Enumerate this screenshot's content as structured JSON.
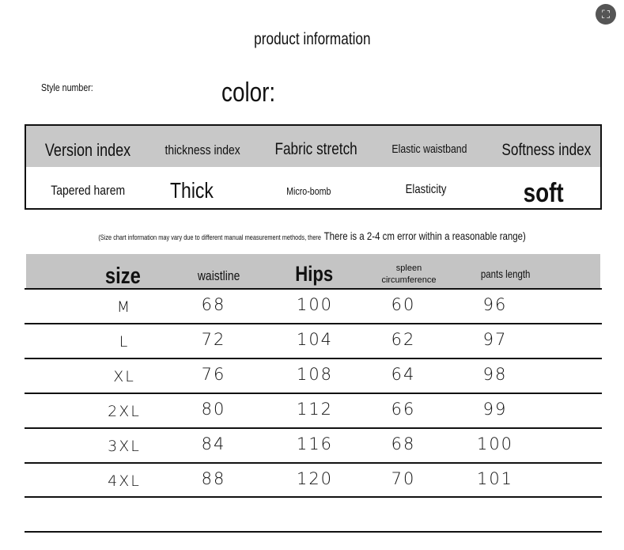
{
  "title": "product information",
  "style_number_label": "Style number:",
  "color_label": "color:",
  "fabric_table": {
    "headers": [
      "Version index",
      "thickness index",
      "Fabric stretch",
      "Elastic waistband",
      "Softness index"
    ],
    "values": [
      "Tapered harem",
      "Thick",
      "Micro-bomb",
      "Elasticity",
      "soft"
    ]
  },
  "note": {
    "small": "(Size chart information may vary due to different manual measurement methods, there",
    "large": "There is a 2-4 cm error within a reasonable range)"
  },
  "size_table": {
    "headers": [
      "size",
      "waistline",
      "Hips",
      "spleen circumference",
      "pants length"
    ],
    "rows": [
      [
        "M",
        "68",
        "100",
        "60",
        "96"
      ],
      [
        "L",
        "72",
        "104",
        "62",
        "97"
      ],
      [
        "XL",
        "76",
        "108",
        "64",
        "98"
      ],
      [
        "2XL",
        "80",
        "112",
        "66",
        "99"
      ],
      [
        "3XL",
        "84",
        "116",
        "68",
        "100"
      ],
      [
        "4XL",
        "88",
        "120",
        "70",
        "101"
      ]
    ]
  },
  "icons": {
    "zoom": "expand-icon"
  }
}
